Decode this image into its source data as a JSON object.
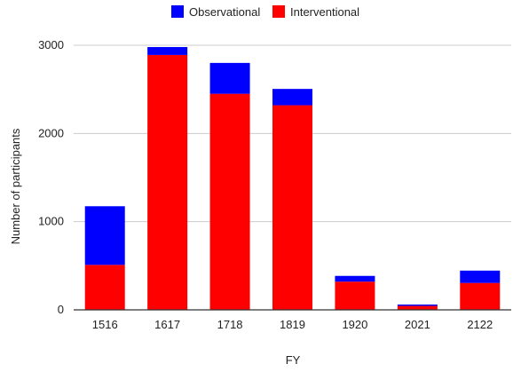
{
  "chart_data": {
    "type": "bar",
    "stacked": true,
    "categories": [
      "1516",
      "1617",
      "1718",
      "1819",
      "1920",
      "2021",
      "2122"
    ],
    "series": [
      {
        "name": "Interventional",
        "color": "#ff0000",
        "values": [
          510,
          2890,
          2450,
          2320,
          320,
          45,
          305
        ]
      },
      {
        "name": "Observational",
        "color": "#0000ff",
        "values": [
          665,
          90,
          350,
          185,
          65,
          15,
          140
        ]
      }
    ],
    "xlabel": "FY",
    "ylabel": "Number of participants",
    "ylim": [
      0,
      3000
    ],
    "yticks": [
      0,
      1000,
      2000,
      3000
    ],
    "grid": true,
    "legend": "top-center",
    "legend_order": [
      "Observational",
      "Interventional"
    ]
  }
}
